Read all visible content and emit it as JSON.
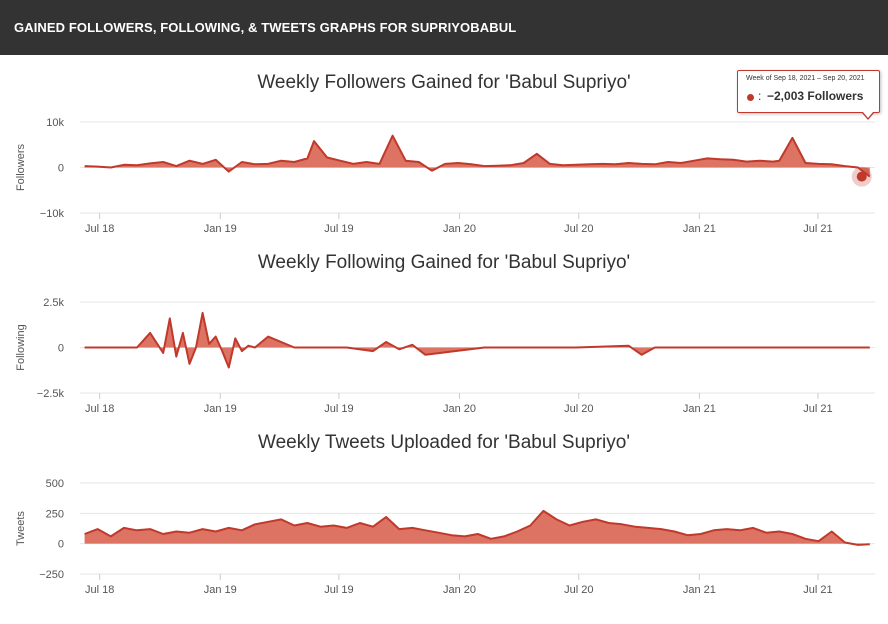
{
  "header": {
    "title": "GAINED FOLLOWERS, FOLLOWING, & TWEETS GRAPHS FOR SUPRIYOBABUL"
  },
  "tooltip": {
    "week": "Week of Sep 18, 2021 – Sep 20, 2021",
    "colon": ":",
    "value": "−2,003 Followers"
  },
  "colors": {
    "accent": "#c0392b",
    "fill": "#d65a48",
    "grid": "#e6e6e6",
    "header_bg": "#333333"
  },
  "chart_data": [
    {
      "type": "area",
      "title": "Weekly Followers Gained for 'Babul Supriyo'",
      "ylabel": "Followers",
      "ylim": [
        -10000,
        10000
      ],
      "yticks": [
        10000,
        0,
        -10000
      ],
      "ytick_labels": [
        "10k",
        "0",
        "−10k"
      ],
      "xtick_labels": [
        "Jul 18",
        "Jan 19",
        "Jul 19",
        "Jan 20",
        "Jul 20",
        "Jan 21",
        "Jul 21"
      ],
      "xtick_dates": [
        "2018-07-01",
        "2019-01-01",
        "2019-07-01",
        "2020-01-01",
        "2020-07-01",
        "2021-01-01",
        "2021-07-01"
      ],
      "x": [
        "2018-06-08",
        "2018-06-28",
        "2018-07-18",
        "2018-08-07",
        "2018-08-27",
        "2018-09-16",
        "2018-10-06",
        "2018-10-26",
        "2018-11-15",
        "2018-12-05",
        "2018-12-25",
        "2019-01-14",
        "2019-02-03",
        "2019-02-23",
        "2019-03-15",
        "2019-04-04",
        "2019-04-24",
        "2019-05-14",
        "2019-05-24",
        "2019-06-13",
        "2019-07-03",
        "2019-07-23",
        "2019-08-12",
        "2019-09-01",
        "2019-09-21",
        "2019-10-11",
        "2019-10-31",
        "2019-11-20",
        "2019-12-10",
        "2019-12-30",
        "2020-01-19",
        "2020-02-08",
        "2020-02-28",
        "2020-03-19",
        "2020-04-08",
        "2020-04-28",
        "2020-05-18",
        "2020-06-07",
        "2020-06-27",
        "2020-07-17",
        "2020-08-06",
        "2020-08-26",
        "2020-09-15",
        "2020-10-05",
        "2020-10-25",
        "2020-11-14",
        "2020-12-04",
        "2020-12-24",
        "2021-01-13",
        "2021-02-02",
        "2021-02-22",
        "2021-03-14",
        "2021-04-03",
        "2021-04-23",
        "2021-05-03",
        "2021-05-23",
        "2021-06-12",
        "2021-07-02",
        "2021-07-22",
        "2021-08-11",
        "2021-08-31",
        "2021-09-18"
      ],
      "series": [
        {
          "values": [
            300,
            200,
            0,
            600,
            500,
            900,
            1200,
            300,
            1500,
            800,
            1700,
            -900,
            1200,
            700,
            800,
            1500,
            1200,
            2000,
            5800,
            2200,
            1500,
            800,
            1200,
            800,
            7000,
            1500,
            1200,
            -700,
            800,
            1000,
            700,
            300,
            400,
            500,
            1000,
            3000,
            800,
            500,
            600,
            700,
            800,
            700,
            1000,
            800,
            700,
            1200,
            1000,
            1500,
            2000,
            1800,
            1700,
            1300,
            1500,
            1300,
            1500,
            6500,
            1000,
            800,
            700,
            300,
            0,
            -2003
          ]
        }
      ]
    },
    {
      "type": "area",
      "title": "Weekly Following Gained for 'Babul Supriyo'",
      "ylabel": "Following",
      "ylim": [
        -2500,
        2500
      ],
      "yticks": [
        2500,
        0,
        -2500
      ],
      "ytick_labels": [
        "2.5k",
        "0",
        "−2.5k"
      ],
      "xtick_labels": [
        "Jul 18",
        "Jan 19",
        "Jul 19",
        "Jan 20",
        "Jul 20",
        "Jan 21",
        "Jul 21"
      ],
      "xtick_dates": [
        "2018-07-01",
        "2019-01-01",
        "2019-07-01",
        "2020-01-01",
        "2020-07-01",
        "2021-01-01",
        "2021-07-01"
      ],
      "x": [
        "2018-06-08",
        "2018-07-18",
        "2018-08-27",
        "2018-09-16",
        "2018-10-06",
        "2018-10-16",
        "2018-10-26",
        "2018-11-05",
        "2018-11-15",
        "2018-11-25",
        "2018-12-05",
        "2018-12-15",
        "2018-12-25",
        "2019-01-04",
        "2019-01-14",
        "2019-01-24",
        "2019-02-03",
        "2019-02-13",
        "2019-02-23",
        "2019-03-15",
        "2019-04-24",
        "2019-06-13",
        "2019-07-13",
        "2019-08-22",
        "2019-09-11",
        "2019-10-01",
        "2019-10-21",
        "2019-11-10",
        "2020-02-08",
        "2020-06-27",
        "2020-09-15",
        "2020-10-05",
        "2020-10-25",
        "2021-01-13",
        "2021-09-18"
      ],
      "series": [
        {
          "values": [
            0,
            0,
            0,
            800,
            -300,
            1600,
            -500,
            800,
            -900,
            0,
            1900,
            200,
            600,
            -200,
            -1100,
            500,
            -200,
            100,
            0,
            600,
            0,
            0,
            0,
            -200,
            300,
            -100,
            150,
            -400,
            0,
            0,
            100,
            -400,
            0,
            0,
            0
          ]
        }
      ]
    },
    {
      "type": "area",
      "title": "Weekly Tweets Uploaded for 'Babul Supriyo'",
      "ylabel": "Tweets",
      "ylim": [
        -250,
        500
      ],
      "yticks": [
        500,
        250,
        0,
        -250
      ],
      "ytick_labels": [
        "500",
        "250",
        "0",
        "−250"
      ],
      "xtick_labels": [
        "Jul 18",
        "Jan 19",
        "Jul 19",
        "Jan 20",
        "Jul 20",
        "Jan 21",
        "Jul 21"
      ],
      "xtick_dates": [
        "2018-07-01",
        "2019-01-01",
        "2019-07-01",
        "2020-01-01",
        "2020-07-01",
        "2021-01-01",
        "2021-07-01"
      ],
      "x": [
        "2018-06-08",
        "2018-06-28",
        "2018-07-18",
        "2018-08-07",
        "2018-08-27",
        "2018-09-16",
        "2018-10-06",
        "2018-10-26",
        "2018-11-15",
        "2018-12-05",
        "2018-12-25",
        "2019-01-14",
        "2019-02-03",
        "2019-02-23",
        "2019-03-15",
        "2019-04-04",
        "2019-04-24",
        "2019-05-14",
        "2019-06-03",
        "2019-06-23",
        "2019-07-13",
        "2019-08-02",
        "2019-08-22",
        "2019-09-11",
        "2019-10-01",
        "2019-10-21",
        "2019-11-10",
        "2019-11-30",
        "2019-12-20",
        "2020-01-09",
        "2020-01-29",
        "2020-02-18",
        "2020-03-09",
        "2020-03-29",
        "2020-04-18",
        "2020-05-08",
        "2020-05-28",
        "2020-06-17",
        "2020-07-07",
        "2020-07-27",
        "2020-08-16",
        "2020-09-05",
        "2020-09-25",
        "2020-10-15",
        "2020-11-04",
        "2020-11-24",
        "2020-12-14",
        "2021-01-03",
        "2021-01-23",
        "2021-02-12",
        "2021-03-04",
        "2021-03-24",
        "2021-04-13",
        "2021-05-03",
        "2021-05-23",
        "2021-06-12",
        "2021-07-02",
        "2021-07-22",
        "2021-08-11",
        "2021-08-31",
        "2021-09-18"
      ],
      "series": [
        {
          "values": [
            80,
            120,
            60,
            130,
            110,
            120,
            80,
            100,
            90,
            120,
            100,
            130,
            110,
            160,
            180,
            200,
            150,
            170,
            140,
            150,
            130,
            170,
            140,
            220,
            120,
            130,
            110,
            90,
            70,
            60,
            80,
            40,
            60,
            100,
            150,
            270,
            200,
            150,
            180,
            200,
            170,
            160,
            140,
            130,
            120,
            100,
            70,
            80,
            110,
            120,
            110,
            130,
            90,
            100,
            80,
            40,
            20,
            100,
            10,
            -10,
            -5
          ]
        }
      ]
    }
  ]
}
